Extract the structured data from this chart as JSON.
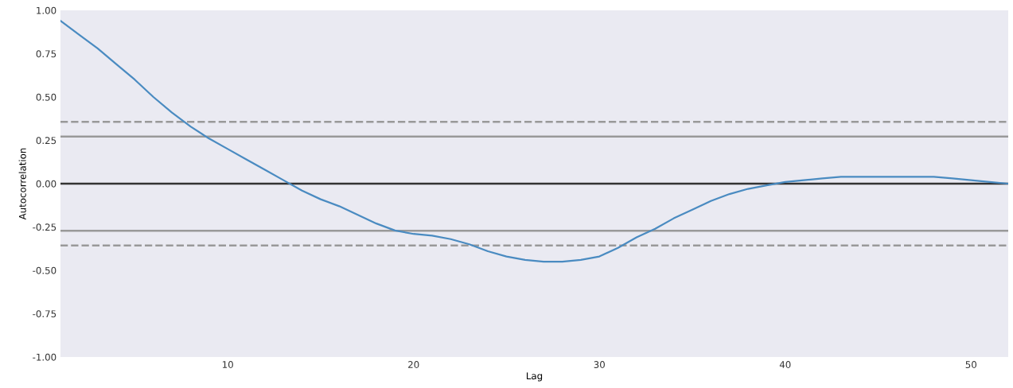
{
  "chart_data": {
    "type": "line",
    "xlabel": "Lag",
    "ylabel": "Autocorrelation",
    "x": [
      1,
      2,
      3,
      4,
      5,
      6,
      7,
      8,
      9,
      10,
      11,
      12,
      13,
      14,
      15,
      16,
      17,
      18,
      19,
      20,
      21,
      22,
      23,
      24,
      25,
      26,
      27,
      28,
      29,
      30,
      31,
      32,
      33,
      34,
      35,
      36,
      37,
      38,
      39,
      40,
      41,
      42,
      43,
      44,
      45,
      46,
      47,
      48,
      49,
      50,
      51,
      52
    ],
    "series": [
      {
        "color": "#4a8bc1",
        "values": [
          0.94,
          0.86,
          0.78,
          0.69,
          0.6,
          0.5,
          0.41,
          0.33,
          0.26,
          0.2,
          0.14,
          0.08,
          0.02,
          -0.04,
          -0.09,
          -0.13,
          -0.18,
          -0.23,
          -0.27,
          -0.29,
          -0.3,
          -0.32,
          -0.35,
          -0.39,
          -0.42,
          -0.44,
          -0.45,
          -0.45,
          -0.44,
          -0.42,
          -0.37,
          -0.31,
          -0.26,
          -0.2,
          -0.15,
          -0.1,
          -0.06,
          -0.03,
          -0.01,
          0.01,
          0.02,
          0.03,
          0.04,
          0.04,
          0.04,
          0.04,
          0.04,
          0.04,
          0.03,
          0.02,
          0.01,
          0.0
        ]
      }
    ],
    "xlim": [
      1,
      52
    ],
    "xticks": [
      10,
      20,
      30,
      40,
      50
    ],
    "ylim": [
      -1.0,
      1.0
    ],
    "yticks": [
      {
        "value": -1.0,
        "label": "-1.00"
      },
      {
        "value": -0.75,
        "label": "-0.75"
      },
      {
        "value": -0.5,
        "label": "-0.50"
      },
      {
        "value": -0.25,
        "label": "-0.25"
      },
      {
        "value": 0.0,
        "label": "0.00"
      },
      {
        "value": 0.25,
        "label": "0.25"
      },
      {
        "value": 0.5,
        "label": "0.50"
      },
      {
        "value": 0.75,
        "label": "0.75"
      },
      {
        "value": 1.0,
        "label": "1.00"
      }
    ],
    "ref_lines": [
      {
        "axis": "y",
        "value": 0.357,
        "color": "#999999",
        "line_style": "dashed"
      },
      {
        "axis": "y",
        "value": 0.272,
        "color": "#999999",
        "line_style": "solid"
      },
      {
        "axis": "y",
        "value": 0.0,
        "color": "#333333",
        "line_style": "solid"
      },
      {
        "axis": "y",
        "value": -0.272,
        "color": "#999999",
        "line_style": "solid"
      },
      {
        "axis": "y",
        "value": -0.357,
        "color": "#999999",
        "line_style": "dashed"
      }
    ],
    "grid": false
  }
}
